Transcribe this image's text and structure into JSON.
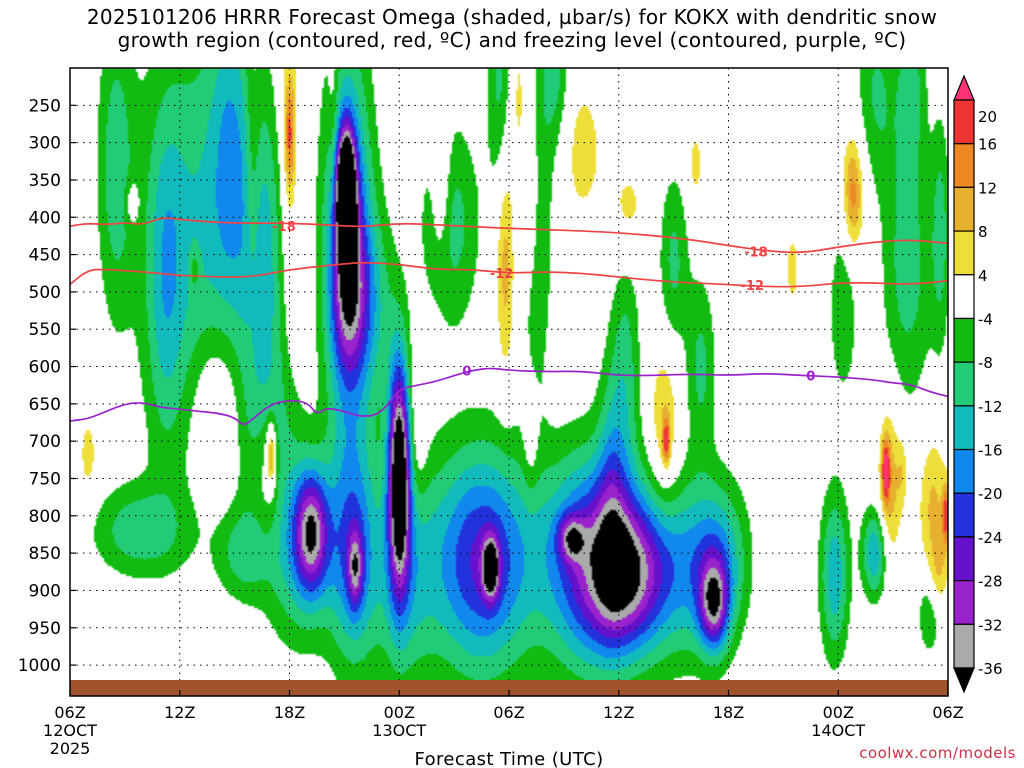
{
  "title_line1": "2025101206 HRRR Forecast Omega (shaded, µbar/s) for KOKX with dendritic snow",
  "title_line2": "growth region (contoured, red, ºC) and freezing level (contoured, purple, ºC)",
  "credit": "coolwx.com/models",
  "chart_data": {
    "type": "heatmap",
    "title": "2025101206 HRRR Forecast Omega (shaded, µbar/s) for KOKX with dendritic snow growth region (contoured, red, ºC) and freezing level (contoured, purple, ºC)",
    "xlabel": "Forecast Time (UTC)",
    "ylabel": "",
    "x_range_hours": [
      0,
      48
    ],
    "y_range_hpa": [
      200,
      1020
    ],
    "x_ticks": [
      {
        "hour": 0,
        "line1": "06Z",
        "line2": "12OCT",
        "line3": "2025"
      },
      {
        "hour": 6,
        "line1": "12Z",
        "line2": "",
        "line3": ""
      },
      {
        "hour": 12,
        "line1": "18Z",
        "line2": "",
        "line3": ""
      },
      {
        "hour": 18,
        "line1": "00Z",
        "line2": "13OCT",
        "line3": ""
      },
      {
        "hour": 24,
        "line1": "06Z",
        "line2": "",
        "line3": ""
      },
      {
        "hour": 30,
        "line1": "12Z",
        "line2": "",
        "line3": ""
      },
      {
        "hour": 36,
        "line1": "18Z",
        "line2": "",
        "line3": ""
      },
      {
        "hour": 42,
        "line1": "00Z",
        "line2": "14OCT",
        "line3": ""
      },
      {
        "hour": 48,
        "line1": "06Z",
        "line2": "",
        "line3": ""
      }
    ],
    "y_ticks": [
      250,
      300,
      350,
      400,
      450,
      500,
      550,
      600,
      650,
      700,
      750,
      800,
      850,
      900,
      950,
      1000
    ],
    "colorbar": {
      "labels": [
        20,
        16,
        12,
        8,
        4,
        -4,
        -8,
        -12,
        -16,
        -20,
        -24,
        -28,
        -32,
        -36
      ],
      "colors": [
        "#ff3377",
        "#ee3333",
        "#ee8822",
        "#e8b030",
        "#eede3a",
        "#ffffff",
        "#11bb11",
        "#22cc77",
        "#11bbbb",
        "#1188ee",
        "#2233dd",
        "#6611cc",
        "#9922cc",
        "#aaaaaa",
        "#000000"
      ]
    },
    "ground_color": "#a0522d",
    "omega_blobs": [
      {
        "h": 2.5,
        "p": 330,
        "rx": 1.0,
        "rp": 200,
        "v": -10
      },
      {
        "h": 3.8,
        "p": 820,
        "rx": 2.5,
        "rp": 60,
        "v": -11
      },
      {
        "h": 5.2,
        "p": 490,
        "rx": 1.0,
        "rp": 220,
        "v": -9
      },
      {
        "h": 7.0,
        "p": 420,
        "rx": 3.0,
        "rp": 300,
        "v": -12
      },
      {
        "h": 8.8,
        "p": 300,
        "rx": 1.1,
        "rp": 220,
        "v": -10
      },
      {
        "h": 10.6,
        "p": 470,
        "rx": 1.3,
        "rp": 230,
        "v": -12
      },
      {
        "h": 11.0,
        "p": 700,
        "rx": 1.5,
        "rp": 120,
        "v": -9
      },
      {
        "h": 12.6,
        "p": 850,
        "rx": 2.0,
        "rp": 120,
        "v": -13
      },
      {
        "h": 13.2,
        "p": 820,
        "rx": 0.9,
        "rp": 80,
        "v": -26
      },
      {
        "h": 15.2,
        "p": 440,
        "rx": 1.3,
        "rp": 260,
        "v": -24
      },
      {
        "h": 15.1,
        "p": 370,
        "rx": 0.5,
        "rp": 80,
        "v": -48
      },
      {
        "h": 15.2,
        "p": 500,
        "rx": 0.9,
        "rp": 100,
        "v": -15
      },
      {
        "h": 16.6,
        "p": 520,
        "rx": 1.3,
        "rp": 130,
        "v": -9
      },
      {
        "h": 15.5,
        "p": 850,
        "rx": 1.3,
        "rp": 150,
        "v": -18
      },
      {
        "h": 15.6,
        "p": 870,
        "rx": 0.4,
        "rp": 50,
        "v": -16
      },
      {
        "h": 18.0,
        "p": 740,
        "rx": 0.6,
        "rp": 150,
        "v": -42
      },
      {
        "h": 18.2,
        "p": 880,
        "rx": 1.7,
        "rp": 150,
        "v": -12
      },
      {
        "h": 20.8,
        "p": 410,
        "rx": 1.6,
        "rp": 140,
        "v": -10
      },
      {
        "h": 22.5,
        "p": 860,
        "rx": 2.8,
        "rp": 150,
        "v": -25
      },
      {
        "h": 23.0,
        "p": 870,
        "rx": 0.45,
        "rp": 40,
        "v": -25
      },
      {
        "h": 23.5,
        "p": 220,
        "rx": 0.7,
        "rp": 150,
        "v": -9
      },
      {
        "h": 25.5,
        "p": 420,
        "rx": 0.8,
        "rp": 200,
        "v": -10
      },
      {
        "h": 26.5,
        "p": 200,
        "rx": 0.8,
        "rp": 120,
        "v": -10
      },
      {
        "h": 28.5,
        "p": 860,
        "rx": 2.6,
        "rp": 140,
        "v": -26
      },
      {
        "h": 27.4,
        "p": 830,
        "rx": 0.7,
        "rp": 30,
        "v": -16
      },
      {
        "h": 30.5,
        "p": 880,
        "rx": 2.0,
        "rp": 100,
        "v": -24
      },
      {
        "h": 29.6,
        "p": 740,
        "rx": 0.8,
        "rp": 160,
        "v": -9
      },
      {
        "h": 30.4,
        "p": 600,
        "rx": 0.8,
        "rp": 160,
        "v": -9
      },
      {
        "h": 33.5,
        "p": 870,
        "rx": 2.5,
        "rp": 120,
        "v": -14
      },
      {
        "h": 35.2,
        "p": 920,
        "rx": 0.8,
        "rp": 60,
        "v": -24
      },
      {
        "h": 35.5,
        "p": 860,
        "rx": 1.5,
        "rp": 100,
        "v": -12
      },
      {
        "h": 33.0,
        "p": 460,
        "rx": 0.8,
        "rp": 120,
        "v": -9
      },
      {
        "h": 34.5,
        "p": 600,
        "rx": 0.8,
        "rp": 120,
        "v": -9
      },
      {
        "h": 41.8,
        "p": 880,
        "rx": 0.8,
        "rp": 110,
        "v": -15
      },
      {
        "h": 42.3,
        "p": 450,
        "rx": 1.0,
        "rp": 180,
        "v": -11
      },
      {
        "h": 44.0,
        "p": 850,
        "rx": 0.7,
        "rp": 60,
        "v": -16
      },
      {
        "h": 44.0,
        "p": 240,
        "rx": 1.2,
        "rp": 140,
        "v": -9
      },
      {
        "h": 46.0,
        "p": 220,
        "rx": 0.8,
        "rp": 120,
        "v": -9
      },
      {
        "h": 45.8,
        "p": 470,
        "rx": 1.4,
        "rp": 180,
        "v": -10
      },
      {
        "h": 47.6,
        "p": 420,
        "rx": 0.5,
        "rp": 150,
        "v": -9
      },
      {
        "h": 47.0,
        "p": 930,
        "rx": 0.7,
        "rp": 60,
        "v": -8
      },
      {
        "h": 9.5,
        "p": 850,
        "rx": 1.5,
        "rp": 60,
        "v": -9
      },
      {
        "h": 12.0,
        "p": 300,
        "rx": 0.6,
        "rp": 250,
        "v": 7
      },
      {
        "h": 12.0,
        "p": 290,
        "rx": 0.25,
        "rp": 70,
        "v": 13
      },
      {
        "h": 10.0,
        "p": 340,
        "rx": 0.4,
        "rp": 180,
        "v": 6
      },
      {
        "h": 14.4,
        "p": 270,
        "rx": 0.3,
        "rp": 160,
        "v": 5
      },
      {
        "h": 8.0,
        "p": 660,
        "rx": 1.3,
        "rp": 110,
        "v": 8
      },
      {
        "h": 10.8,
        "p": 740,
        "rx": 0.8,
        "rp": 110,
        "v": 10
      },
      {
        "h": 11.0,
        "p": 720,
        "rx": 0.25,
        "rp": 40,
        "v": 16
      },
      {
        "h": 1.0,
        "p": 720,
        "rx": 0.5,
        "rp": 60,
        "v": 6
      },
      {
        "h": 3.4,
        "p": 380,
        "rx": 0.4,
        "rp": 30,
        "v": 6
      },
      {
        "h": 6.8,
        "p": 470,
        "rx": 0.3,
        "rp": 30,
        "v": 6
      },
      {
        "h": 20.3,
        "p": 350,
        "rx": 0.5,
        "rp": 110,
        "v": 8
      },
      {
        "h": 19.0,
        "p": 680,
        "rx": 0.5,
        "rp": 100,
        "v": 6
      },
      {
        "h": 24.5,
        "p": 240,
        "rx": 0.5,
        "rp": 110,
        "v": 6
      },
      {
        "h": 23.8,
        "p": 460,
        "rx": 0.5,
        "rp": 150,
        "v": 10
      },
      {
        "h": 25.2,
        "p": 700,
        "rx": 0.4,
        "rp": 70,
        "v": 5
      },
      {
        "h": 25.2,
        "p": 380,
        "rx": 0.5,
        "rp": 120,
        "v": 9
      },
      {
        "h": 28.0,
        "p": 310,
        "rx": 1.2,
        "rp": 100,
        "v": 6
      },
      {
        "h": 30.5,
        "p": 390,
        "rx": 1.0,
        "rp": 70,
        "v": 6
      },
      {
        "h": 32.5,
        "p": 680,
        "rx": 0.8,
        "rp": 110,
        "v": 9
      },
      {
        "h": 32.6,
        "p": 700,
        "rx": 0.2,
        "rp": 30,
        "v": 15
      },
      {
        "h": 34.2,
        "p": 330,
        "rx": 0.4,
        "rp": 50,
        "v": 6
      },
      {
        "h": 42.5,
        "p": 370,
        "rx": 1.3,
        "rp": 150,
        "v": 9
      },
      {
        "h": 42.8,
        "p": 370,
        "rx": 0.5,
        "rp": 70,
        "v": 13
      },
      {
        "h": 44.8,
        "p": 760,
        "rx": 0.6,
        "rp": 110,
        "v": 11
      },
      {
        "h": 44.6,
        "p": 740,
        "rx": 0.2,
        "rp": 40,
        "v": 18
      },
      {
        "h": 47.2,
        "p": 790,
        "rx": 0.8,
        "rp": 100,
        "v": 9
      },
      {
        "h": 47.9,
        "p": 800,
        "rx": 0.2,
        "rp": 40,
        "v": 16
      },
      {
        "h": 45.5,
        "p": 740,
        "rx": 0.3,
        "rp": 50,
        "v": 6
      },
      {
        "h": 39.5,
        "p": 470,
        "rx": 0.5,
        "rp": 70,
        "v": 5
      },
      {
        "h": 47.5,
        "p": 880,
        "rx": 0.5,
        "rp": 50,
        "v": 7
      }
    ],
    "contours": [
      {
        "name": "-18",
        "color": "#ee4444",
        "width": 1.7,
        "label": "-18",
        "points": [
          [
            0,
            412
          ],
          [
            1,
            408
          ],
          [
            2,
            410
          ],
          [
            3,
            407
          ],
          [
            4,
            410
          ],
          [
            5,
            400
          ],
          [
            6,
            403
          ],
          [
            8,
            407
          ],
          [
            10,
            408
          ],
          [
            12,
            408
          ],
          [
            14,
            410
          ],
          [
            16,
            413
          ],
          [
            18,
            408
          ],
          [
            20,
            410
          ],
          [
            24,
            415
          ],
          [
            30,
            420
          ],
          [
            34,
            430
          ],
          [
            36,
            438
          ],
          [
            38,
            445
          ],
          [
            40,
            448
          ],
          [
            42,
            440
          ],
          [
            44,
            433
          ],
          [
            46,
            430
          ],
          [
            48,
            435
          ]
        ],
        "label_at": [
          [
            11.7,
            412
          ],
          [
            37.5,
            446
          ]
        ]
      },
      {
        "name": "-12",
        "color": "#ee4444",
        "width": 1.7,
        "label": "-12",
        "points": [
          [
            0,
            490
          ],
          [
            1,
            470
          ],
          [
            2,
            470
          ],
          [
            4,
            473
          ],
          [
            6,
            478
          ],
          [
            8,
            480
          ],
          [
            10,
            480
          ],
          [
            12,
            470
          ],
          [
            14,
            465
          ],
          [
            16,
            460
          ],
          [
            18,
            463
          ],
          [
            20,
            470
          ],
          [
            22,
            470
          ],
          [
            24,
            475
          ],
          [
            26,
            473
          ],
          [
            28,
            475
          ],
          [
            30,
            480
          ],
          [
            32,
            485
          ],
          [
            34,
            488
          ],
          [
            36,
            490
          ],
          [
            38,
            493
          ],
          [
            40,
            493
          ],
          [
            42,
            488
          ],
          [
            44,
            488
          ],
          [
            46,
            490
          ],
          [
            48,
            485
          ]
        ],
        "label_at": [
          [
            23.6,
            475
          ],
          [
            37.3,
            491
          ]
        ]
      },
      {
        "name": "0",
        "color": "#9922cc",
        "width": 1.7,
        "label": "0",
        "points": [
          [
            0,
            673
          ],
          [
            1,
            670
          ],
          [
            2,
            660
          ],
          [
            3,
            650
          ],
          [
            4,
            648
          ],
          [
            5,
            655
          ],
          [
            6,
            657
          ],
          [
            7,
            660
          ],
          [
            8,
            662
          ],
          [
            9,
            668
          ],
          [
            9.5,
            680
          ],
          [
            10,
            670
          ],
          [
            11,
            650
          ],
          [
            12,
            645
          ],
          [
            13,
            648
          ],
          [
            13.5,
            665
          ],
          [
            14,
            655
          ],
          [
            15,
            660
          ],
          [
            16,
            668
          ],
          [
            17,
            663
          ],
          [
            18,
            630
          ],
          [
            19,
            625
          ],
          [
            20,
            620
          ],
          [
            21,
            612
          ],
          [
            22,
            605
          ],
          [
            23,
            602
          ],
          [
            24,
            605
          ],
          [
            26,
            607
          ],
          [
            28,
            606
          ],
          [
            30,
            612
          ],
          [
            32,
            612
          ],
          [
            34,
            610
          ],
          [
            36,
            612
          ],
          [
            38,
            609
          ],
          [
            40,
            612
          ],
          [
            42,
            614
          ],
          [
            43,
            616
          ],
          [
            44,
            618
          ],
          [
            45,
            622
          ],
          [
            46,
            624
          ],
          [
            47,
            634
          ],
          [
            48,
            640
          ]
        ],
        "label_at": [
          [
            21.7,
            605
          ],
          [
            40.5,
            612
          ]
        ]
      }
    ]
  }
}
